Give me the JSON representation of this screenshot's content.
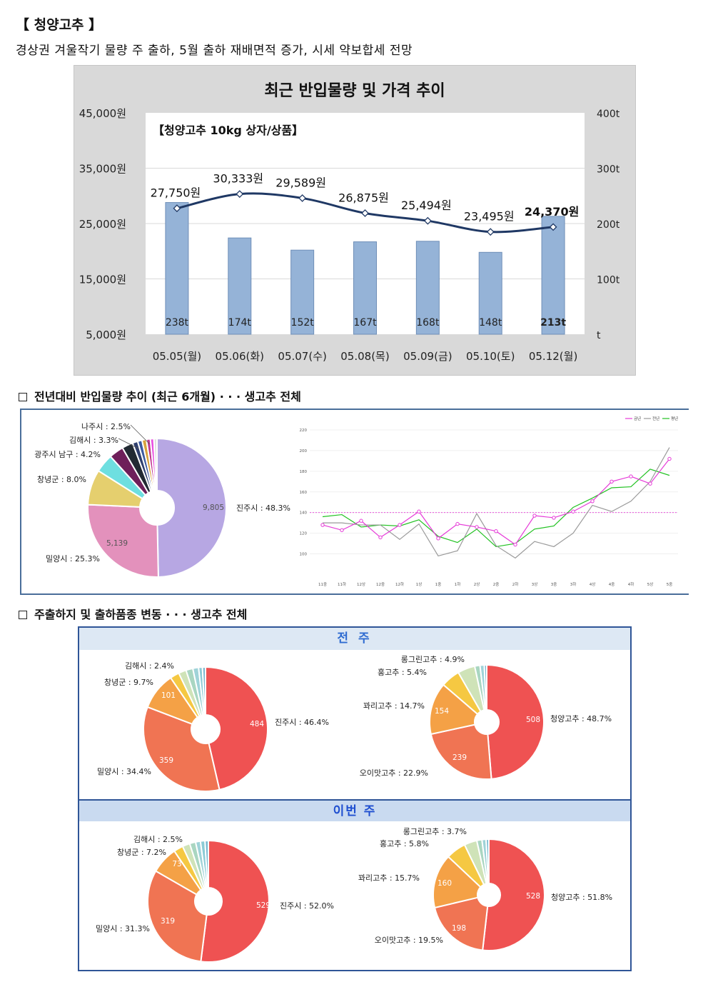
{
  "header": {
    "title": "【 청양고추 】",
    "subtitle": "경상권 겨울작기 물량 주 출하, 5월 출하 재배면적 증가, 시세 약보합세 전망"
  },
  "sections": {
    "s1": "전년대비 반입물량 추이 (최근 6개월) · · · 생고추 전체",
    "s2": "주출하지 및 출하품종 변동 · · · 생고추 전체"
  },
  "bands": {
    "prev": "전 주",
    "this": "이번 주"
  },
  "chart_data": [
    {
      "type": "bar",
      "title": "최근 반입물량 및 가격 추이",
      "subtitle": "【청양고추 10kg 상자/상품】",
      "categories": [
        "05.05(월)",
        "05.06(화)",
        "05.07(수)",
        "05.08(목)",
        "05.09(금)",
        "05.10(토)",
        "05.12(월)"
      ],
      "series": [
        {
          "values": [
            238,
            174,
            152,
            167,
            168,
            148,
            213
          ],
          "labels": [
            "238t",
            "174t",
            "152t",
            "167t",
            "168t",
            "148t",
            "213t"
          ],
          "axis": "right",
          "color": "#95b3d7"
        },
        {
          "values": [
            27750,
            30333,
            29589,
            26875,
            25494,
            23495,
            24370
          ],
          "labels": [
            "27,750원",
            "30,333원",
            "29,589원",
            "26,875원",
            "25,494원",
            "23,495원",
            "24,370원"
          ],
          "axis": "left",
          "color": "#1f3864",
          "type": "line"
        }
      ],
      "left_ticks": [
        "45,000원",
        "35,000원",
        "25,000원",
        "15,000원",
        "5,000원"
      ],
      "right_ticks": [
        "400t",
        "300t",
        "200t",
        "100t",
        "t"
      ],
      "ylim_left": [
        5000,
        45000
      ],
      "ylim_right": [
        0,
        400
      ],
      "grid": true
    },
    {
      "type": "pie",
      "variant": "donut",
      "slices": [
        {
          "label": "진주시 : 48.3%",
          "value": 48.3,
          "number": "9,805",
          "color": "#b7a7e3"
        },
        {
          "label": "밀양시 : 25.3%",
          "value": 25.3,
          "number": "5,139",
          "color": "#e391bc"
        },
        {
          "label": "창녕군 : 8.0%",
          "value": 8.0,
          "number": "",
          "color": "#e5cf6e"
        },
        {
          "label": "광주시 남구 : 4.2%",
          "value": 4.2,
          "number": "",
          "color": "#6edfe0"
        },
        {
          "label": "김해시 : 3.3%",
          "value": 3.3,
          "number": "",
          "color": "#6e1f5a"
        },
        {
          "label": "나주시 : 2.5%",
          "value": 2.5,
          "number": "",
          "color": "#222a33"
        },
        {
          "label": "",
          "value": 1.2,
          "number": "",
          "color": "#2f3f6e"
        },
        {
          "label": "",
          "value": 1.0,
          "number": "",
          "color": "#3d5aa0"
        },
        {
          "label": "",
          "value": 1.0,
          "number": "",
          "color": "#d9a23d"
        },
        {
          "label": "",
          "value": 0.9,
          "number": "",
          "color": "#c0398f"
        },
        {
          "label": "",
          "value": 0.8,
          "number": "",
          "color": "#e94ee0"
        },
        {
          "label": "",
          "value": 0.7,
          "number": "",
          "color": "#e0e0e0"
        }
      ]
    },
    {
      "type": "line",
      "legend": [
        "금년",
        "전년",
        "평년"
      ],
      "legend_placement": "top-right",
      "x_ticks": [
        "11중",
        "11하",
        "12상",
        "12중",
        "12하",
        "1상",
        "1중",
        "1하",
        "2상",
        "2중",
        "2하",
        "3상",
        "3중",
        "3하",
        "4상",
        "4중",
        "4하",
        "5상",
        "5중"
      ],
      "y_ticks": [
        "220",
        "200",
        "180",
        "160",
        "140",
        "120",
        "100"
      ],
      "ylim": [
        90,
        220
      ],
      "reference_line": 140,
      "series": [
        {
          "name": "금년",
          "color": "#e63ad8",
          "values": [
            128,
            123,
            132,
            116,
            128,
            141,
            115,
            129,
            126,
            122,
            109,
            137,
            135,
            141,
            151,
            170,
            175,
            168,
            192
          ]
        },
        {
          "name": "전년",
          "color": "#9a9a9a",
          "values": [
            130,
            130,
            128,
            128,
            114,
            129,
            98,
            103,
            139,
            108,
            96,
            112,
            107,
            120,
            147,
            141,
            151,
            170,
            203
          ]
        },
        {
          "name": "평년",
          "color": "#22c222",
          "values": [
            136,
            138,
            126,
            128,
            127,
            133,
            117,
            111,
            124,
            107,
            110,
            124,
            127,
            145,
            154,
            164,
            165,
            182,
            176
          ]
        }
      ]
    },
    {
      "type": "pie",
      "variant": "donut",
      "group": "전 주",
      "slices": [
        {
          "label": "진주시 : 46.4%",
          "value": 46.4,
          "number": "484",
          "color": "#ef5252"
        },
        {
          "label": "밀양시 : 34.4%",
          "value": 34.4,
          "number": "359",
          "color": "#f07453"
        },
        {
          "label": "창녕군 : 9.7%",
          "value": 9.7,
          "number": "101",
          "color": "#f4a146"
        },
        {
          "label": "김해시 : 2.4%",
          "value": 2.4,
          "number": "",
          "color": "#f5c842"
        },
        {
          "label": "",
          "value": 2.0,
          "number": "",
          "color": "#cfe3b8"
        },
        {
          "label": "",
          "value": 1.8,
          "number": "",
          "color": "#a9d6c1"
        },
        {
          "label": "",
          "value": 1.5,
          "number": "",
          "color": "#9fd3d8"
        },
        {
          "label": "",
          "value": 1.0,
          "number": "",
          "color": "#8ccbd6"
        },
        {
          "label": "",
          "value": 0.8,
          "number": "",
          "color": "#78b8d0"
        }
      ]
    },
    {
      "type": "pie",
      "variant": "donut",
      "group": "전 주",
      "slices": [
        {
          "label": "청양고추 : 48.7%",
          "value": 48.7,
          "number": "508",
          "color": "#ef5252"
        },
        {
          "label": "오이맛고추 : 22.9%",
          "value": 22.9,
          "number": "239",
          "color": "#f07453"
        },
        {
          "label": "꽈리고추 : 14.7%",
          "value": 14.7,
          "number": "154",
          "color": "#f4a146"
        },
        {
          "label": "홍고추 : 5.4%",
          "value": 5.4,
          "number": "",
          "color": "#f5c842"
        },
        {
          "label": "롱그린고추 : 4.9%",
          "value": 4.9,
          "number": "",
          "color": "#cfe3b8"
        },
        {
          "label": "",
          "value": 1.5,
          "number": "",
          "color": "#a9d6c1"
        },
        {
          "label": "",
          "value": 1.2,
          "number": "",
          "color": "#9fd3d8"
        },
        {
          "label": "",
          "value": 0.7,
          "number": "",
          "color": "#78b8d0"
        }
      ]
    },
    {
      "type": "pie",
      "variant": "donut",
      "group": "이번 주",
      "slices": [
        {
          "label": "진주시 : 52.0%",
          "value": 52.0,
          "number": "529",
          "color": "#ef5252"
        },
        {
          "label": "밀양시 : 31.3%",
          "value": 31.3,
          "number": "319",
          "color": "#f07453"
        },
        {
          "label": "창녕군 : 7.2%",
          "value": 7.2,
          "number": "73",
          "color": "#f4a146"
        },
        {
          "label": "김해시 : 2.5%",
          "value": 2.5,
          "number": "",
          "color": "#f5c842"
        },
        {
          "label": "",
          "value": 2.0,
          "number": "",
          "color": "#cfe3b8"
        },
        {
          "label": "",
          "value": 1.6,
          "number": "",
          "color": "#a9d6c1"
        },
        {
          "label": "",
          "value": 1.3,
          "number": "",
          "color": "#9fd3d8"
        },
        {
          "label": "",
          "value": 1.2,
          "number": "",
          "color": "#8ccbd6"
        },
        {
          "label": "",
          "value": 0.9,
          "number": "",
          "color": "#78b8d0"
        }
      ]
    },
    {
      "type": "pie",
      "variant": "donut",
      "group": "이번 주",
      "slices": [
        {
          "label": "청양고추 : 51.8%",
          "value": 51.8,
          "number": "528",
          "color": "#ef5252"
        },
        {
          "label": "오이맛고추 : 19.5%",
          "value": 19.5,
          "number": "198",
          "color": "#f07453"
        },
        {
          "label": "꽈리고추 : 15.7%",
          "value": 15.7,
          "number": "160",
          "color": "#f4a146"
        },
        {
          "label": "홍고추 : 5.8%",
          "value": 5.8,
          "number": "",
          "color": "#f5c842"
        },
        {
          "label": "롱그린고추 : 3.7%",
          "value": 3.7,
          "number": "",
          "color": "#cfe3b8"
        },
        {
          "label": "",
          "value": 1.5,
          "number": "",
          "color": "#a9d6c1"
        },
        {
          "label": "",
          "value": 1.2,
          "number": "",
          "color": "#9fd3d8"
        },
        {
          "label": "",
          "value": 0.8,
          "number": "",
          "color": "#78b8d0"
        }
      ]
    }
  ]
}
